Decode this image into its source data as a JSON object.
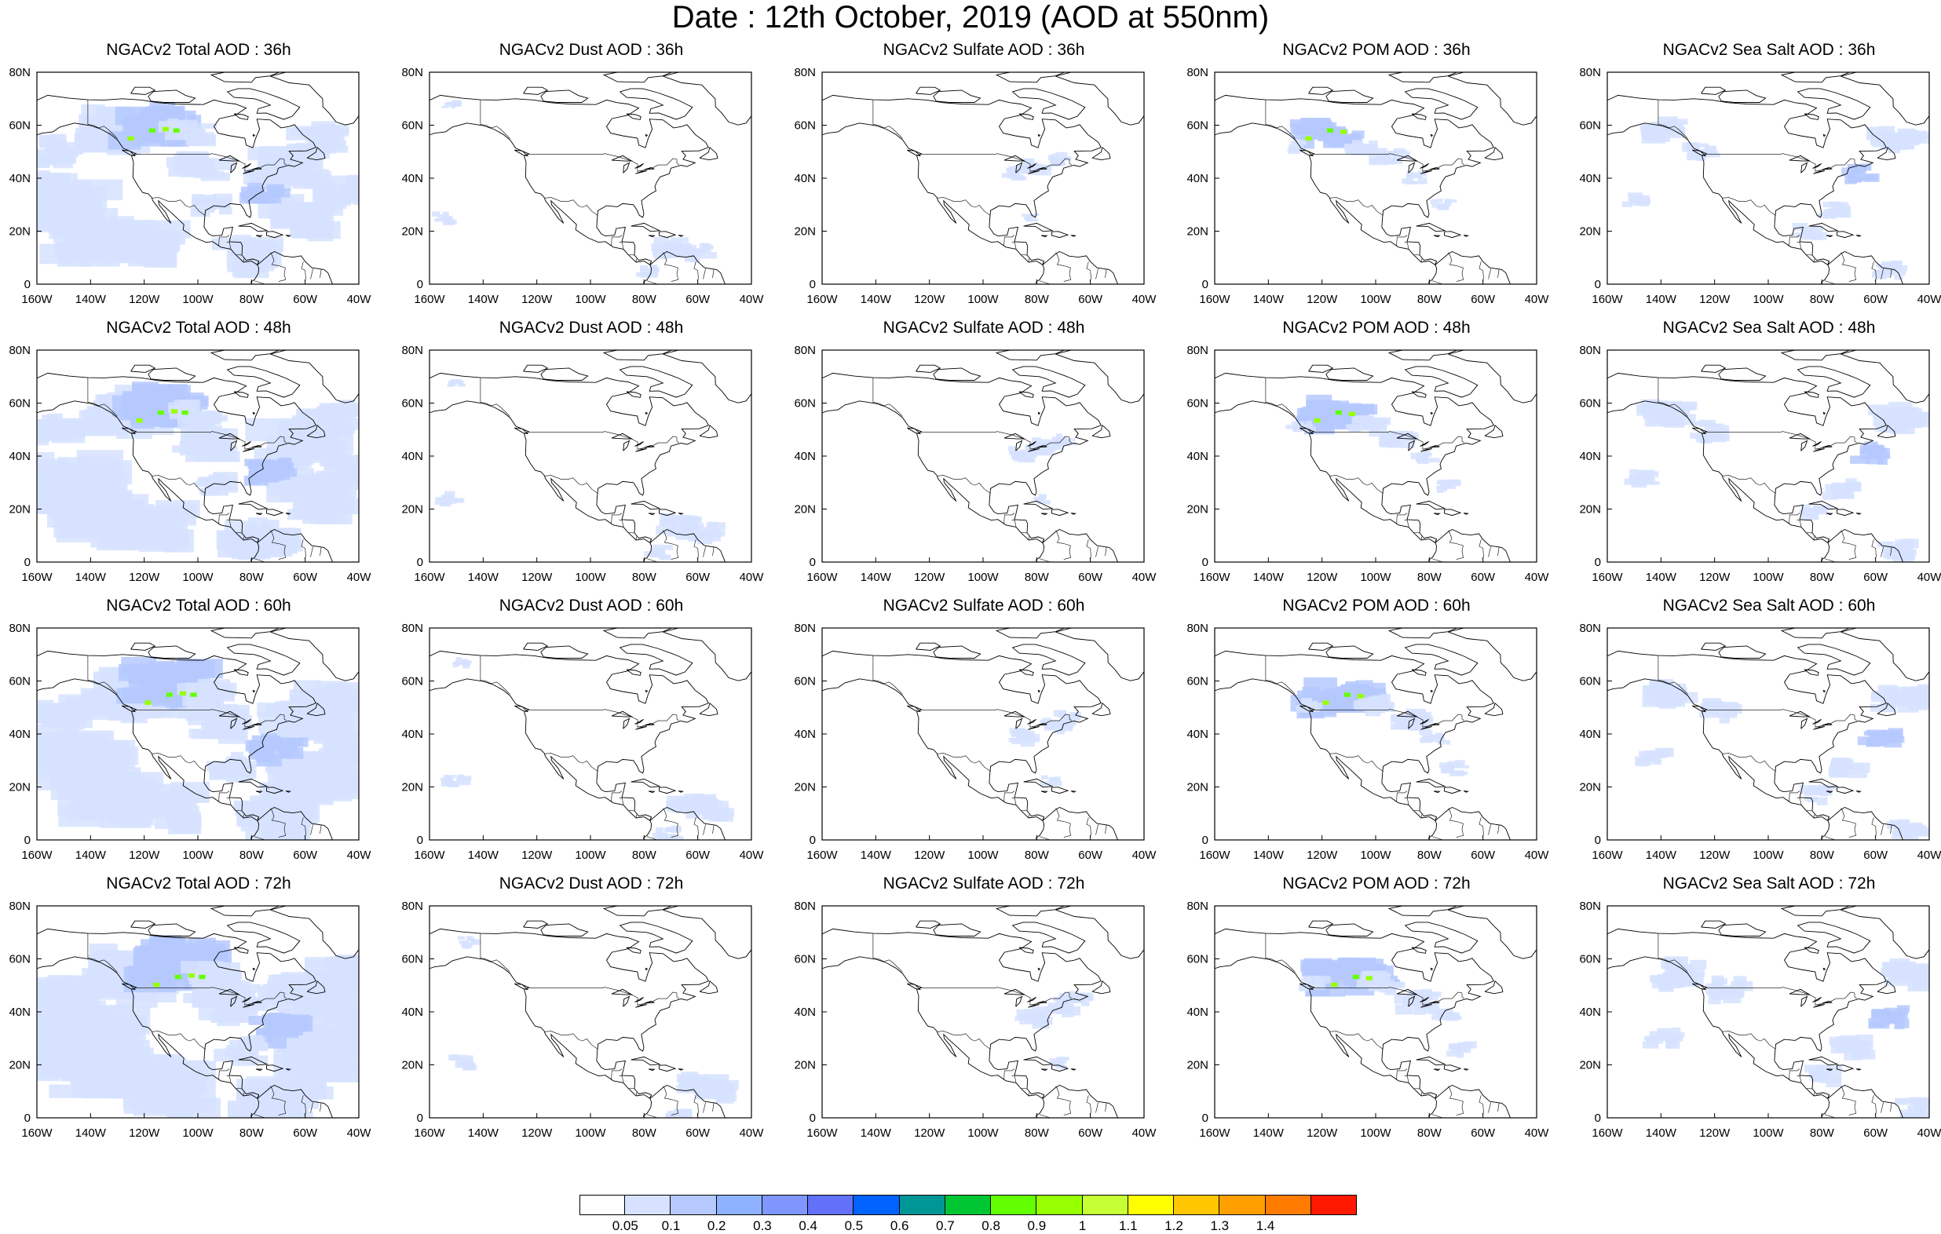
{
  "title": "Date : 12th October, 2019 (AOD at 550nm)",
  "lat_ticks": [
    "80N",
    "60N",
    "40N",
    "20N",
    "0"
  ],
  "lon_ticks": [
    "160W",
    "140W",
    "120W",
    "100W",
    "80W",
    "60W",
    "40W"
  ],
  "panels": [
    [
      {
        "title": "NGACv2 Total AOD : 36h",
        "variable": "total",
        "hour": 36
      },
      {
        "title": "NGACv2 Dust AOD : 36h",
        "variable": "dust",
        "hour": 36
      },
      {
        "title": "NGACv2 Sulfate AOD : 36h",
        "variable": "sulfate",
        "hour": 36
      },
      {
        "title": "NGACv2 POM AOD : 36h",
        "variable": "pom",
        "hour": 36
      },
      {
        "title": "NGACv2 Sea Salt AOD : 36h",
        "variable": "seasalt",
        "hour": 36
      }
    ],
    [
      {
        "title": "NGACv2 Total AOD : 48h",
        "variable": "total",
        "hour": 48
      },
      {
        "title": "NGACv2 Dust AOD : 48h",
        "variable": "dust",
        "hour": 48
      },
      {
        "title": "NGACv2 Sulfate AOD : 48h",
        "variable": "sulfate",
        "hour": 48
      },
      {
        "title": "NGACv2 POM AOD : 48h",
        "variable": "pom",
        "hour": 48
      },
      {
        "title": "NGACv2 Sea Salt AOD : 48h",
        "variable": "seasalt",
        "hour": 48
      }
    ],
    [
      {
        "title": "NGACv2 Total AOD : 60h",
        "variable": "total",
        "hour": 60
      },
      {
        "title": "NGACv2 Dust AOD : 60h",
        "variable": "dust",
        "hour": 60
      },
      {
        "title": "NGACv2 Sulfate AOD : 60h",
        "variable": "sulfate",
        "hour": 60
      },
      {
        "title": "NGACv2 POM AOD : 60h",
        "variable": "pom",
        "hour": 60
      },
      {
        "title": "NGACv2 Sea Salt AOD : 60h",
        "variable": "seasalt",
        "hour": 60
      }
    ],
    [
      {
        "title": "NGACv2 Total AOD : 72h",
        "variable": "total",
        "hour": 72
      },
      {
        "title": "NGACv2 Dust AOD : 72h",
        "variable": "dust",
        "hour": 72
      },
      {
        "title": "NGACv2 Sulfate AOD : 72h",
        "variable": "sulfate",
        "hour": 72
      },
      {
        "title": "NGACv2 POM AOD : 72h",
        "variable": "pom",
        "hour": 72
      },
      {
        "title": "NGACv2 Sea Salt  AOD : 72h",
        "variable": "seasalt",
        "hour": 72
      }
    ]
  ],
  "colorbar": {
    "labels": [
      "0.05",
      "0.1",
      "0.2",
      "0.3",
      "0.4",
      "0.5",
      "0.6",
      "0.7",
      "0.8",
      "0.9",
      "1",
      "1.1",
      "1.2",
      "1.3",
      "1.4"
    ],
    "colors": [
      "#ffffff",
      "#d6e2ff",
      "#b5c9ff",
      "#8eb2ff",
      "#7f96ff",
      "#6370f8",
      "#0063ff",
      "#009696",
      "#00c633",
      "#63ff00",
      "#96ff00",
      "#c6ff33",
      "#ffff00",
      "#ffc600",
      "#ffa000",
      "#ff7c00",
      "#ff1900"
    ]
  }
}
